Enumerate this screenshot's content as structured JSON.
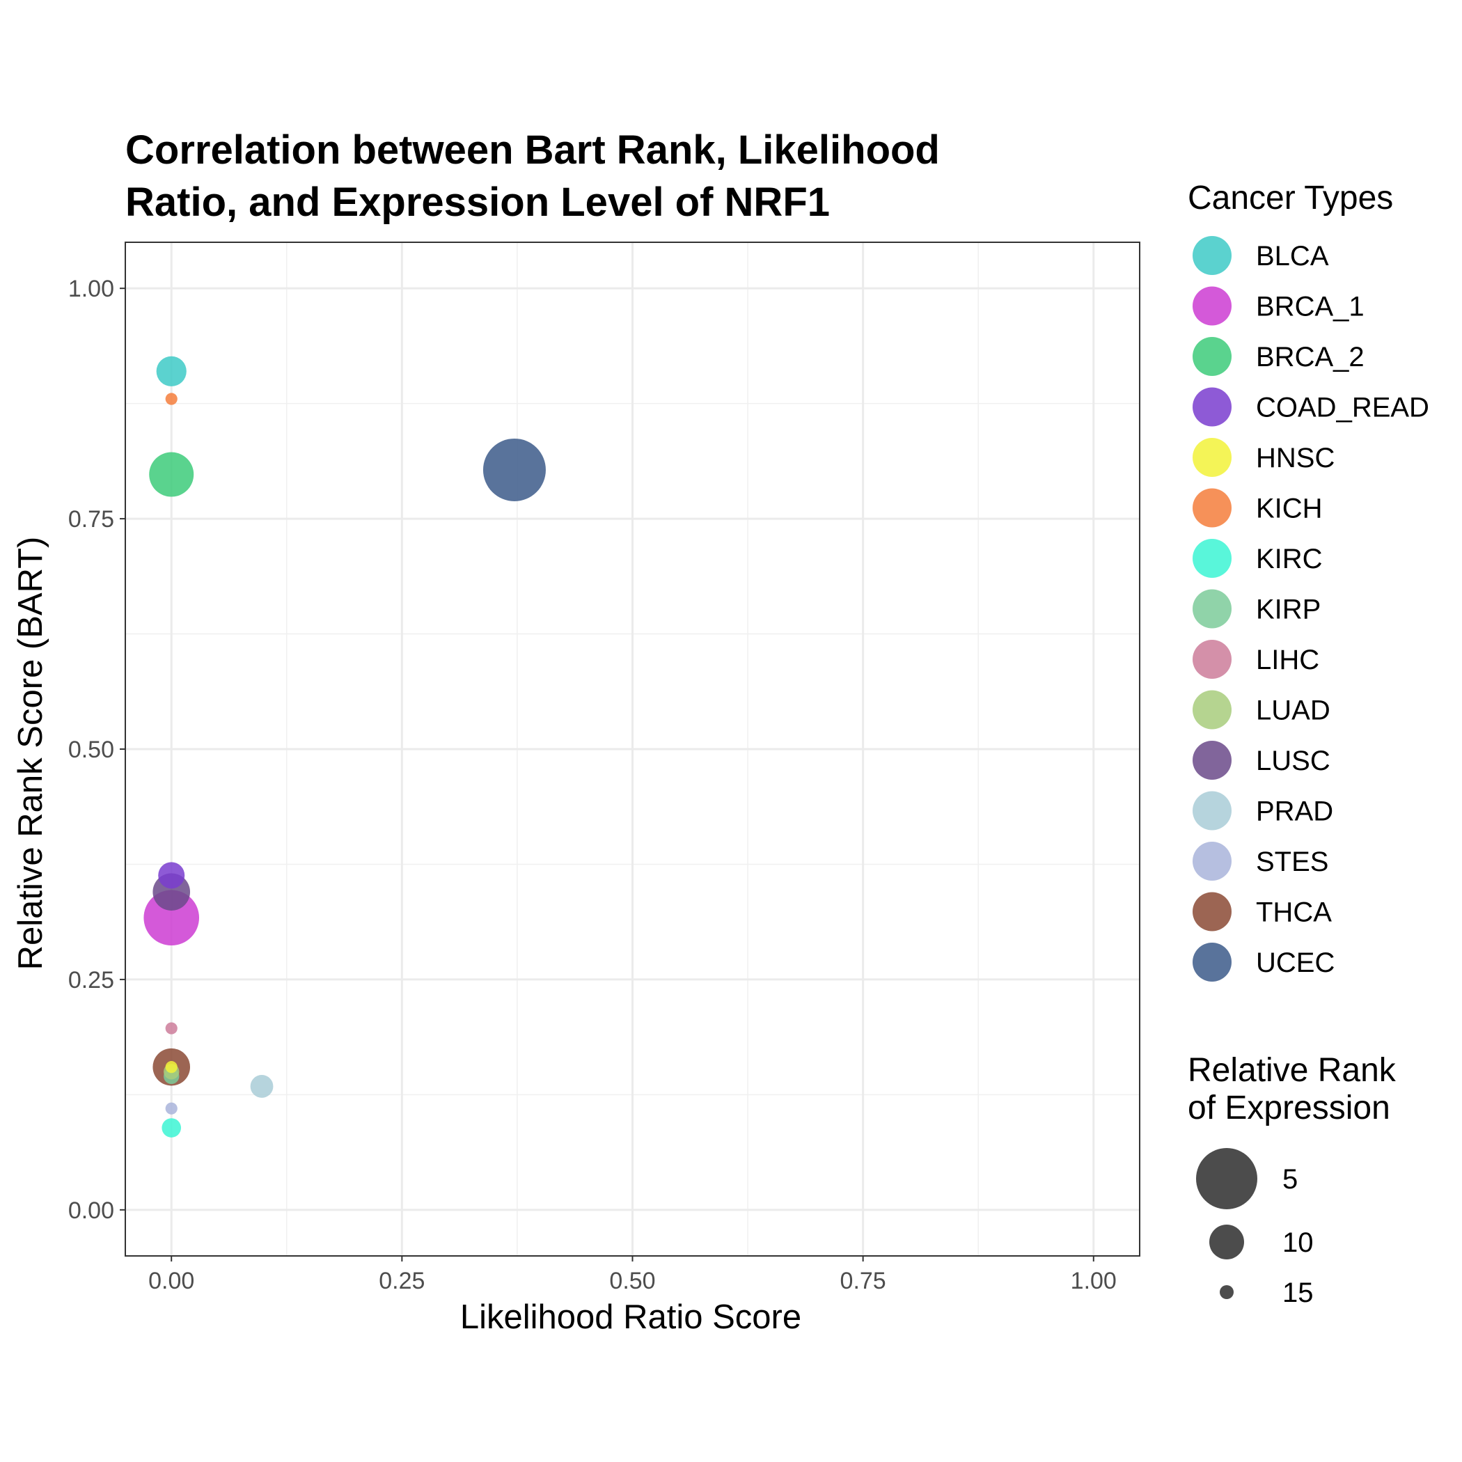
{
  "chart_data": {
    "type": "scatter",
    "title": [
      "Correlation between Bart Rank, Likelihood",
      "Ratio, and Expression Level of NRF1"
    ],
    "xlabel": "Likelihood Ratio Score",
    "ylabel": "Relative Rank Score (BART)",
    "xlim": [
      -0.05,
      1.05
    ],
    "ylim": [
      -0.05,
      1.05
    ],
    "xticks": [
      "0.00",
      "0.25",
      "0.50",
      "0.75",
      "1.00"
    ],
    "yticks": [
      "0.00",
      "0.25",
      "0.50",
      "0.75",
      "1.00"
    ],
    "grid": true,
    "legend_position": "right",
    "color_legend_title": "Cancer Types",
    "size_legend_title": [
      "Relative Rank",
      "of Expression"
    ],
    "size_legend": [
      5,
      10,
      15
    ],
    "series": [
      {
        "name": "BLCA",
        "color": "#3ECAC7",
        "x": 0.0,
        "y": 0.91,
        "size": 10
      },
      {
        "name": "BRCA_1",
        "color": "#CC3CD2",
        "x": 0.0,
        "y": 0.317,
        "size": 3
      },
      {
        "name": "BRCA_2",
        "color": "#3DCB7A",
        "x": 0.0,
        "y": 0.798,
        "size": 6
      },
      {
        "name": "COAD_READ",
        "color": "#7A3DCF",
        "x": 0.0,
        "y": 0.363,
        "size": 11
      },
      {
        "name": "HNSC",
        "color": "#F2F23A",
        "x": 0.0,
        "y": 0.155,
        "size": 15
      },
      {
        "name": "KICH",
        "color": "#F47E3C",
        "x": 0.0,
        "y": 0.88,
        "size": 15
      },
      {
        "name": "KIRC",
        "color": "#3CF4D4",
        "x": 0.0,
        "y": 0.089,
        "size": 13
      },
      {
        "name": "KIRP",
        "color": "#7DCB9A",
        "x": 0.0,
        "y": 0.145,
        "size": 14
      },
      {
        "name": "LIHC",
        "color": "#CC7D9A",
        "x": 0.0,
        "y": 0.197,
        "size": 15
      },
      {
        "name": "LUAD",
        "color": "#A8CC7C",
        "x": 0.0,
        "y": 0.15,
        "size": 14
      },
      {
        "name": "LUSC",
        "color": "#6B4A8A",
        "x": 0.0,
        "y": 0.345,
        "size": 8
      },
      {
        "name": "PRAD",
        "color": "#A9CCD7",
        "x": 0.098,
        "y": 0.134,
        "size": 12
      },
      {
        "name": "STES",
        "color": "#A9B4DA",
        "x": 0.0,
        "y": 0.11,
        "size": 15
      },
      {
        "name": "THCA",
        "color": "#8B4A35",
        "x": 0.0,
        "y": 0.155,
        "size": 8
      },
      {
        "name": "UCEC",
        "color": "#3C5A8A",
        "x": 0.372,
        "y": 0.803,
        "size": 1
      }
    ]
  }
}
